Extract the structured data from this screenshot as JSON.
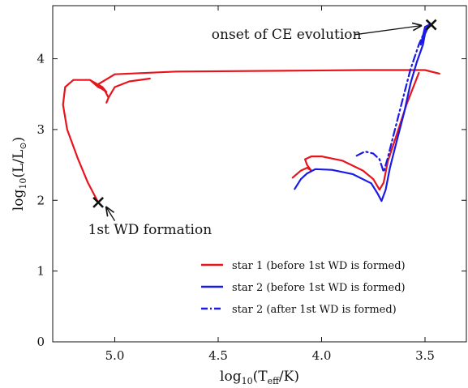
{
  "chart_data": {
    "type": "line",
    "title": "",
    "xlabel_main": "log",
    "xlabel_sub": "10",
    "xlabel_rest": "(T",
    "xlabel_sub2": "eff",
    "xlabel_tail": "/K)",
    "ylabel_main": "log",
    "ylabel_sub": "10",
    "ylabel_rest": "(L/L",
    "ylabel_sub2": "⊙",
    "ylabel_tail": ")",
    "xlim": [
      5.3,
      3.3
    ],
    "ylim": [
      0,
      4.75
    ],
    "x_reversed": true,
    "xticks": [
      5.0,
      4.5,
      4.0,
      3.5
    ],
    "xtick_labels": [
      "5.0",
      "4.5",
      "4.0",
      "3.5"
    ],
    "yticks": [
      0,
      1,
      2,
      3,
      4
    ],
    "ytick_labels": [
      "0",
      "1",
      "2",
      "3",
      "4"
    ],
    "legend_position": "lower-right",
    "series": [
      {
        "name": "star 1 (before 1st WD is formed)",
        "color": "#e8141c",
        "style": "solid",
        "points": [
          [
            4.83,
            3.72
          ],
          [
            4.93,
            3.68
          ],
          [
            5.0,
            3.6
          ],
          [
            5.03,
            3.45
          ],
          [
            5.04,
            3.38
          ],
          [
            5.03,
            3.45
          ],
          [
            5.05,
            3.56
          ],
          [
            5.08,
            3.6
          ],
          [
            5.12,
            3.7
          ],
          [
            5.06,
            3.57
          ],
          [
            5.04,
            3.53
          ],
          [
            5.06,
            3.6
          ],
          [
            5.12,
            3.7
          ],
          [
            5.2,
            3.7
          ],
          [
            5.24,
            3.6
          ],
          [
            5.25,
            3.35
          ],
          [
            5.23,
            3.0
          ],
          [
            5.18,
            2.6
          ],
          [
            5.13,
            2.25
          ],
          [
            5.08,
            1.97
          ]
        ]
      },
      {
        "name": "",
        "color": "#e8141c",
        "style": "solid",
        "points": [
          [
            5.08,
            3.64
          ],
          [
            5.0,
            3.78
          ],
          [
            4.7,
            3.82
          ],
          [
            4.2,
            3.83
          ],
          [
            3.8,
            3.84
          ],
          [
            3.5,
            3.84
          ],
          [
            3.43,
            3.79
          ]
        ]
      },
      {
        "name": "",
        "color": "#e8141c",
        "style": "solid",
        "points": [
          [
            4.14,
            2.32
          ],
          [
            4.1,
            2.42
          ],
          [
            4.07,
            2.46
          ],
          [
            4.05,
            2.42
          ],
          [
            4.07,
            2.5
          ],
          [
            4.08,
            2.58
          ],
          [
            4.05,
            2.62
          ],
          [
            4.0,
            2.62
          ],
          [
            3.9,
            2.56
          ],
          [
            3.8,
            2.42
          ],
          [
            3.75,
            2.3
          ],
          [
            3.72,
            2.15
          ],
          [
            3.7,
            2.25
          ],
          [
            3.68,
            2.55
          ],
          [
            3.64,
            2.9
          ],
          [
            3.59,
            3.35
          ],
          [
            3.53,
            3.8
          ]
        ]
      },
      {
        "name": "star 2 (before 1st WD is formed)",
        "color": "#1a1ae6",
        "style": "solid",
        "points": [
          [
            4.13,
            2.16
          ],
          [
            4.1,
            2.3
          ],
          [
            4.07,
            2.38
          ],
          [
            4.03,
            2.44
          ],
          [
            3.95,
            2.43
          ],
          [
            3.85,
            2.37
          ],
          [
            3.76,
            2.24
          ],
          [
            3.73,
            2.1
          ],
          [
            3.71,
            1.99
          ],
          [
            3.69,
            2.15
          ],
          [
            3.67,
            2.45
          ],
          [
            3.64,
            2.8
          ],
          [
            3.6,
            3.25
          ],
          [
            3.57,
            3.65
          ],
          [
            3.54,
            3.95
          ],
          [
            3.51,
            4.2
          ],
          [
            3.5,
            4.35
          ],
          [
            3.48,
            4.48
          ],
          [
            3.5,
            4.38
          ],
          [
            3.52,
            4.2
          ],
          [
            3.5,
            4.45
          ],
          [
            3.48,
            4.48
          ]
        ]
      },
      {
        "name": "star 2 (after 1st WD is formed)",
        "color": "#1a1ae6",
        "style": "dashdot",
        "points": [
          [
            3.83,
            2.63
          ],
          [
            3.79,
            2.69
          ],
          [
            3.75,
            2.66
          ],
          [
            3.72,
            2.58
          ],
          [
            3.7,
            2.4
          ],
          [
            3.68,
            2.6
          ],
          [
            3.65,
            2.95
          ],
          [
            3.61,
            3.4
          ],
          [
            3.57,
            3.85
          ],
          [
            3.53,
            4.2
          ],
          [
            3.5,
            4.4
          ],
          [
            3.48,
            4.48
          ]
        ]
      }
    ],
    "markers": [
      {
        "name": "cross-1st-wd",
        "x": 5.08,
        "y": 1.97
      },
      {
        "name": "cross-ce-onset",
        "x": 3.47,
        "y": 4.48
      }
    ],
    "annotations": [
      {
        "name": "annot-1st-wd",
        "text": "1st WD formation",
        "target_x": 5.08,
        "target_y": 1.97,
        "text_x": 4.83,
        "text_y": 1.52
      },
      {
        "name": "annot-ce-onset",
        "text": "onset of CE evolution",
        "target_x": 3.48,
        "target_y": 4.48,
        "text_x": 4.17,
        "text_y": 4.28
      }
    ]
  }
}
